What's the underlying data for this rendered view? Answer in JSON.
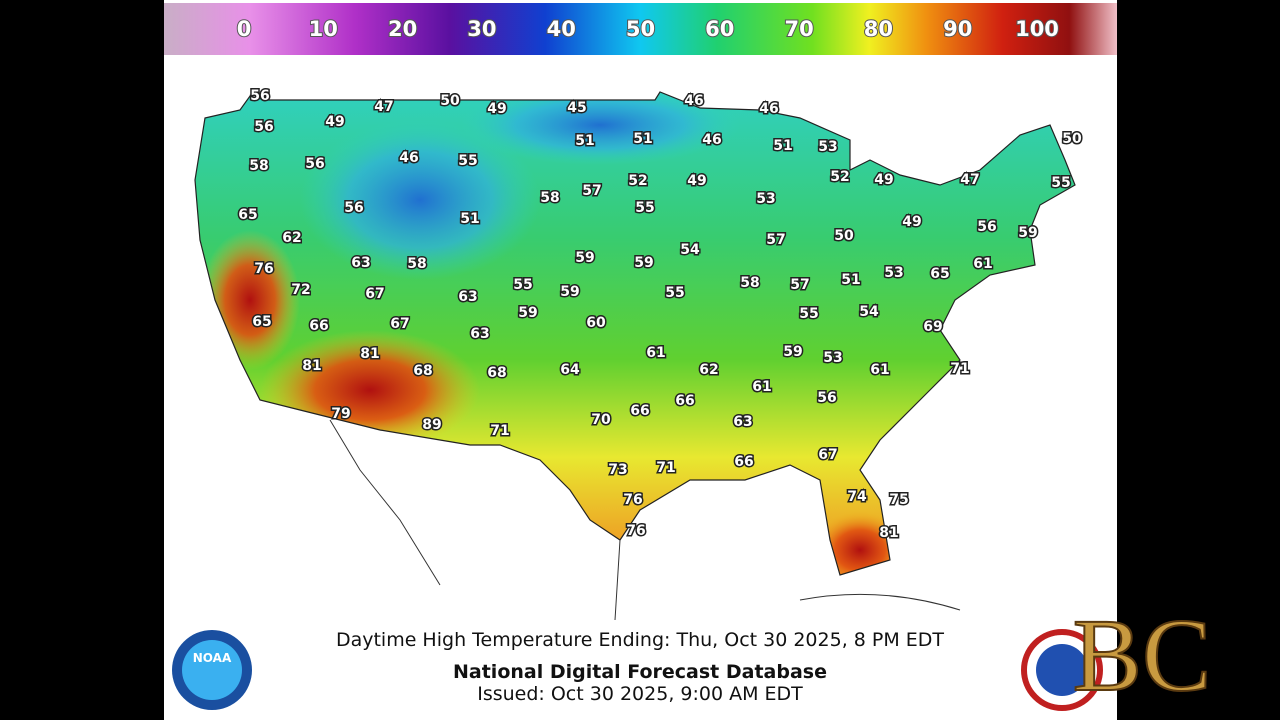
{
  "colorbar": {
    "labels": [
      0,
      10,
      20,
      30,
      40,
      50,
      60,
      70,
      80,
      90,
      100
    ]
  },
  "map": {
    "temperatures": [
      56,
      47,
      50,
      49,
      45,
      46,
      46,
      56,
      49,
      51,
      51,
      46,
      51,
      53,
      50,
      58,
      56,
      46,
      55,
      52,
      49,
      52,
      49,
      47,
      55,
      57,
      58,
      53,
      65,
      56,
      51,
      55,
      49,
      56,
      59,
      62,
      57,
      54,
      50,
      76,
      63,
      58,
      59,
      59,
      53,
      65,
      61,
      72,
      67,
      63,
      55,
      59,
      55,
      58,
      57,
      51,
      65,
      66,
      67,
      59,
      60,
      63,
      55,
      54,
      69,
      81,
      61,
      59,
      53,
      81,
      68,
      68,
      64,
      62,
      61,
      71,
      61,
      56,
      79,
      70,
      66,
      66,
      63,
      89,
      71,
      73,
      71,
      66,
      67,
      76,
      74,
      75,
      81,
      76
    ]
  },
  "footer": {
    "line1": "Daytime High Temperature Ending: Thu, Oct 30 2025, 8 PM EDT",
    "line2": "National Digital Forecast Database",
    "line3": "Issued: Oct 30 2025, 9:00 AM EDT"
  },
  "logos": {
    "noaa": "NOAA",
    "overlay": "BC"
  }
}
